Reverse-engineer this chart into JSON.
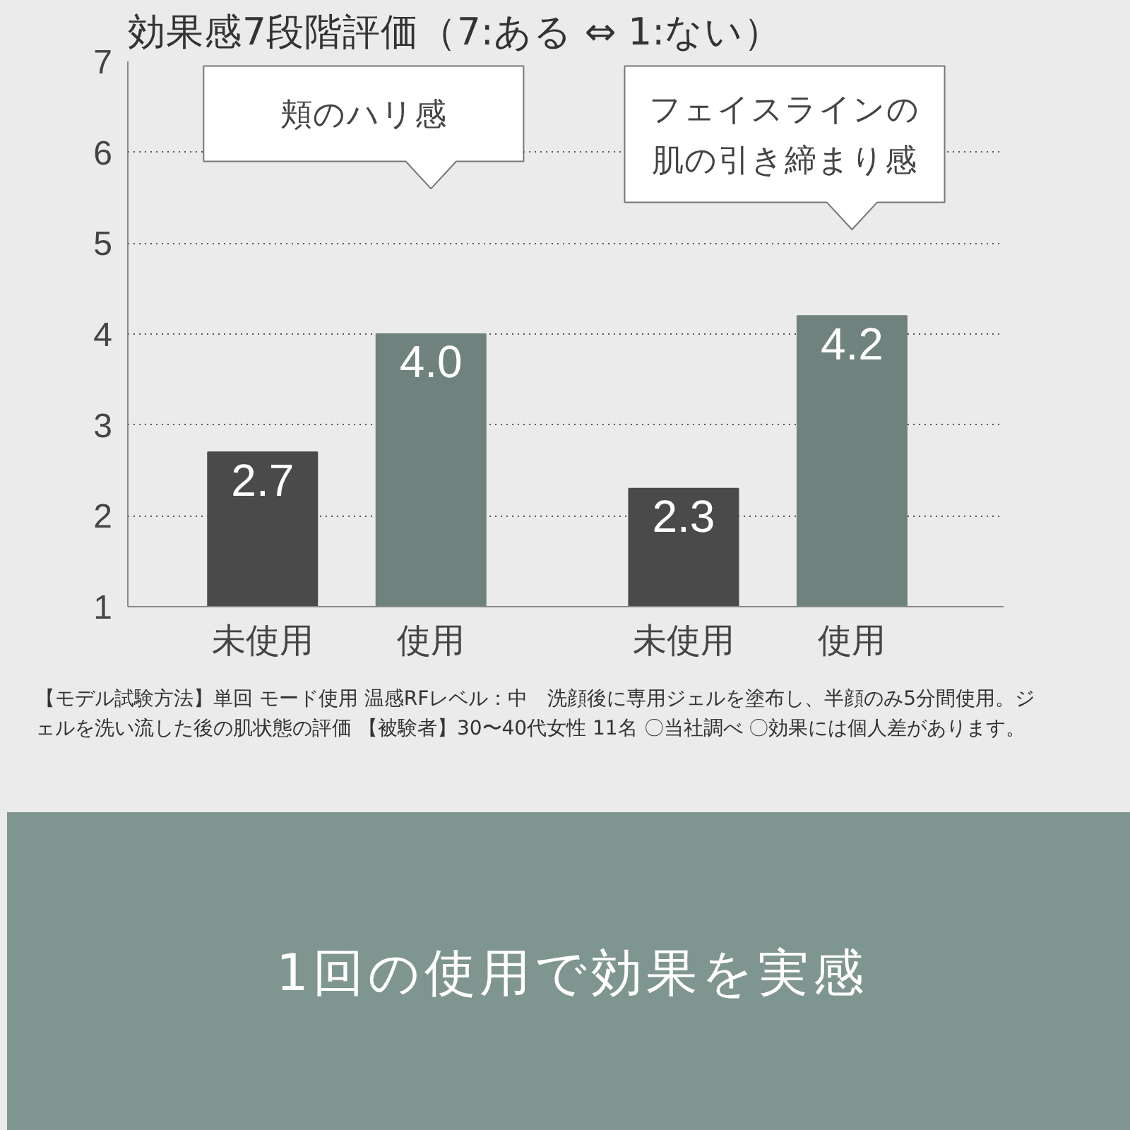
{
  "chart_data": {
    "type": "bar",
    "title": "効果感7段階評価（7:ある ⇔ 1:ない）",
    "categories": [
      "未使用",
      "使用",
      "未使用",
      "使用"
    ],
    "values": [
      2.7,
      4.0,
      2.3,
      4.2
    ],
    "colors": [
      "#4a4a4a",
      "#6f827d",
      "#4a4a4a",
      "#6f827d"
    ],
    "value_labels": [
      "2.7",
      "4.0",
      "2.3",
      "4.2"
    ],
    "ylim": [
      1,
      7
    ],
    "yticks": [
      1,
      2,
      3,
      4,
      5,
      6,
      7
    ],
    "grid": "y",
    "line_style": "dotted",
    "annotations": [
      "頬のハリ感",
      "フェイスラインの肌の引き締まり感",
      "【モデル試験方法】単回 モード使用 温感RFレベル：中　洗顔後に専用ジェルを塗布し、半顔のみ5分間使用。ジェルを洗い流した後の肌状態の評価 【被験者】30〜40代女性 11名 〇当社調べ 〇効果には個人差があります。",
      "1回の使用で効果を実感"
    ]
  }
}
